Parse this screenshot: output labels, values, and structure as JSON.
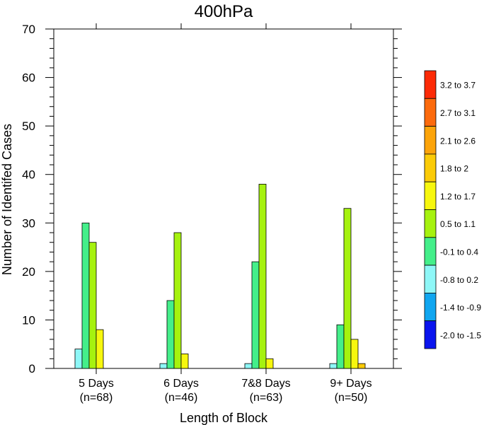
{
  "chart_data": {
    "type": "bar",
    "title": "400hPa",
    "xlabel": "Length of Block",
    "ylabel": "Number of Identifed Cases",
    "ylim": [
      0,
      70
    ],
    "yticks": [
      0,
      10,
      20,
      30,
      40,
      50,
      60,
      70
    ],
    "categories": [
      {
        "name": "5 Days",
        "n": "(n=68)"
      },
      {
        "name": "6 Days",
        "n": "(n=46)"
      },
      {
        "name": "7&8 Days",
        "n": "(n=63)"
      },
      {
        "name": "9+ Days",
        "n": "(n=50)"
      }
    ],
    "series": [
      {
        "name": "-2.0 to -1.5",
        "color": "#0a14ee",
        "values": [
          0,
          0,
          0,
          0
        ]
      },
      {
        "name": "-1.4 to -0.9",
        "color": "#10a6f0",
        "values": [
          0,
          0,
          0,
          0
        ]
      },
      {
        "name": "-0.8 to 0.2",
        "color": "#8ef7f7",
        "values": [
          4,
          1,
          1,
          1
        ]
      },
      {
        "name": "-0.1 to 0.4",
        "color": "#44ef8a",
        "values": [
          30,
          14,
          22,
          9
        ]
      },
      {
        "name": "0.5 to 1.1",
        "color": "#a6f20f",
        "values": [
          26,
          28,
          38,
          33
        ]
      },
      {
        "name": "1.2 to 1.7",
        "color": "#f7f70e",
        "values": [
          8,
          3,
          2,
          6
        ]
      },
      {
        "name": "1.8 to 2",
        "color": "#fbcb07",
        "values": [
          0,
          0,
          0,
          1
        ]
      },
      {
        "name": "2.1 to 2.6",
        "color": "#fca40a",
        "values": [
          0,
          0,
          0,
          0
        ]
      },
      {
        "name": "2.7 to 3.1",
        "color": "#fc6a0c",
        "values": [
          0,
          0,
          0,
          0
        ]
      },
      {
        "name": "3.2 to 3.7",
        "color": "#fc2a06",
        "values": [
          0,
          0,
          0,
          0
        ]
      }
    ],
    "grid": false,
    "legend": "right"
  }
}
